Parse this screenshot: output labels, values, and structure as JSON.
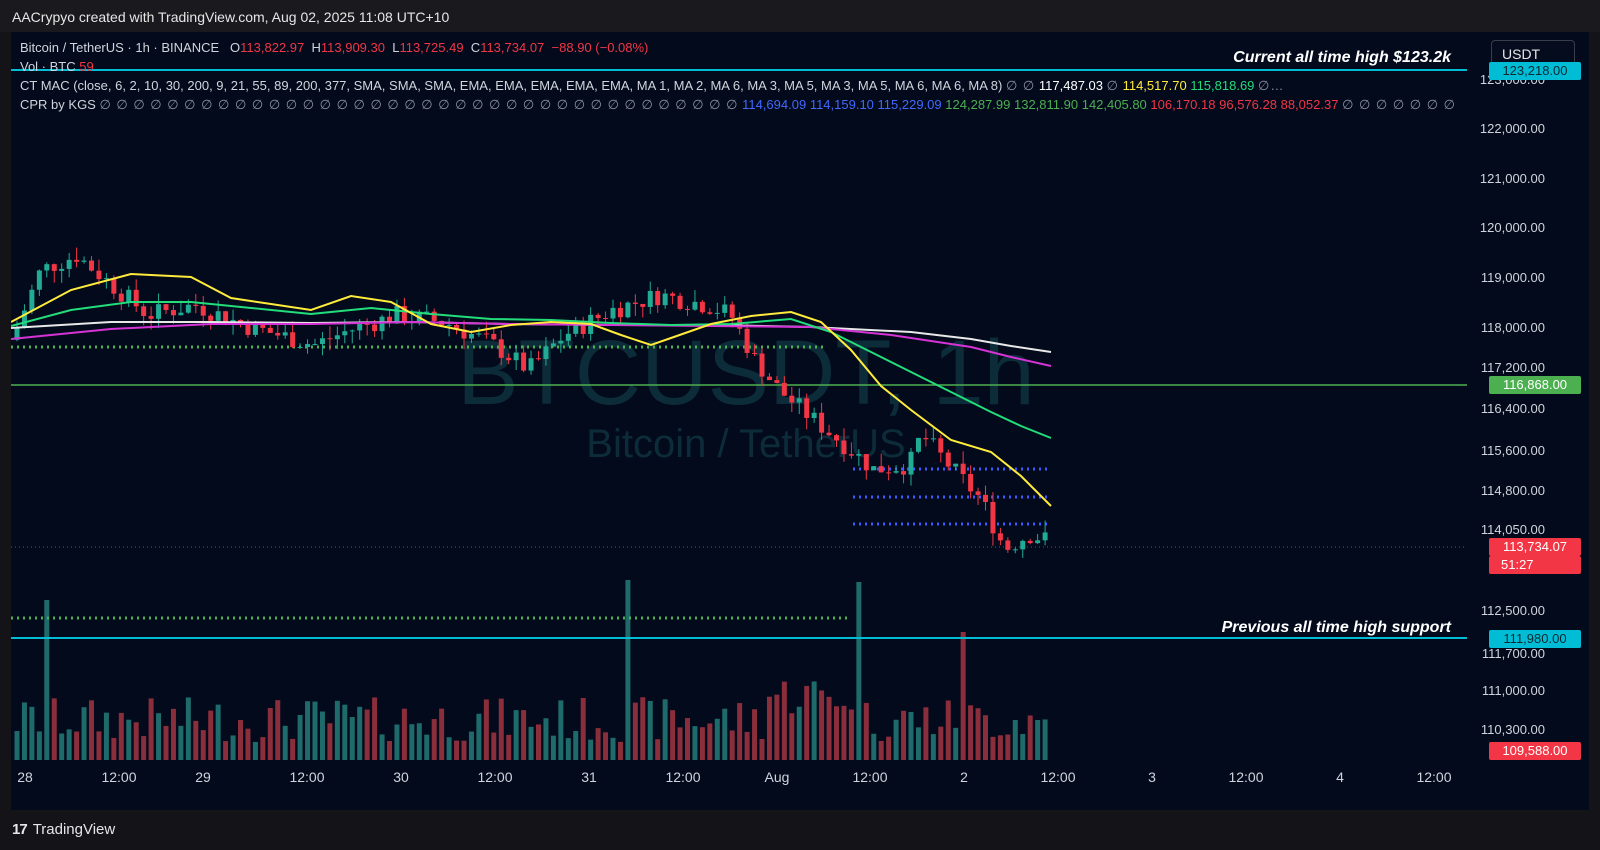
{
  "header": {
    "author_line": "AACrypyo created with TradingView.com, Aug 02, 2025 11:08 UTC+10"
  },
  "legend": {
    "symbol_line": "Bitcoin / TetherUS · 1h · BINANCE",
    "open_label": "O",
    "open": "113,822.97",
    "high_label": "H",
    "high": "113,909.30",
    "low_label": "L",
    "low": "113,725.49",
    "close_label": "C",
    "close": "113,734.07",
    "change": "−88.90 (−0.08%)",
    "vol_label": "Vol · BTC",
    "vol_value": "59",
    "ctmac_label": "CT MAC (close, 6, 2, 10, 30, 200, 9, 21, 55, 89, 200, 377, SMA, SMA, SMA, EMA, EMA, EMA, EMA, EMA, MA 1, MA 2, MA 6, MA 3, MA 5, MA 3, MA 5, MA 6, MA 6, MA 8)",
    "ctmac_values": [
      "117,487.03",
      "114,517.70",
      "115,818.69"
    ],
    "cpr_label": "CPR by KGS",
    "cpr_values": [
      "114,694.09",
      "114,159.10",
      "115,229.09",
      "124,287.99",
      "132,811.90",
      "142,405.80",
      "106,170.18",
      "96,576.28",
      "88,052.37"
    ],
    "na_symbol": "∅",
    "cpr_na_leading": "∅ ∅ ∅ ∅ ∅ ∅ ∅ ∅ ∅ ∅ ∅ ∅ ∅ ∅ ∅ ∅ ∅ ∅ ∅ ∅ ∅ ∅ ∅ ∅ ∅ ∅ ∅ ∅ ∅ ∅ ∅ ∅ ∅ ∅ ∅ ∅ ∅ ∅",
    "cpr_na_trailing": "∅ ∅ ∅ ∅ ∅ ∅ ∅",
    "ctmac_na_leading": "∅ ∅",
    "ctmac_na_trailing": "∅…"
  },
  "currency_button": "USDT",
  "annotations": {
    "ath": "Current all time high $123.2k",
    "support": "Previous all time high support"
  },
  "watermark": {
    "symbol": "BTCUSDT, 1h",
    "name": "Bitcoin / TetherUS"
  },
  "price_axis": {
    "labels": [
      "123,000.00",
      "122,000.00",
      "121,000.00",
      "120,000.00",
      "119,000.00",
      "118,000.00",
      "117,200.00",
      "116,400.00",
      "115,600.00",
      "114,800.00",
      "114,050.00",
      "112,500.00",
      "111,700.00",
      "111,000.00",
      "110,300.00"
    ],
    "tags": {
      "ath": "123,218.00",
      "level": "116,868.00",
      "current": "113,734.07",
      "countdown": "51:27",
      "support": "111,980.00",
      "bottom": "109,588.00"
    }
  },
  "time_axis": [
    "28",
    "12:00",
    "29",
    "12:00",
    "30",
    "12:00",
    "31",
    "12:00",
    "Aug",
    "12:00",
    "2",
    "12:00",
    "3",
    "12:00",
    "4",
    "12:00"
  ],
  "footer": {
    "logo": "17",
    "brand": "TradingView"
  },
  "colors": {
    "background": "#020a1c",
    "up": "#22ab94",
    "down": "#f23645",
    "cyan": "#00bcd4",
    "green_line": "#4caf50",
    "yellow_ma": "#ffeb3b",
    "green_ma": "#22dd7a",
    "white_ma": "#e8e8e8",
    "magenta_ma": "#d633d6",
    "cpr_blue": "#3d5afe"
  }
}
